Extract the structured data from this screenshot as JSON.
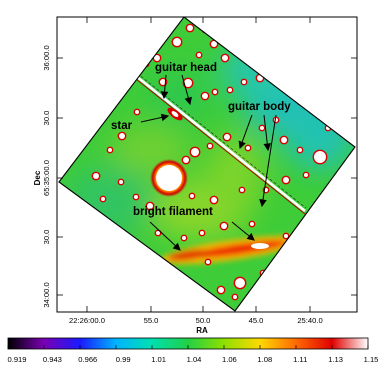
{
  "chart_data": {
    "type": "heatmap",
    "title": "",
    "xlabel": "RA",
    "ylabel_line1": "Dec",
    "ylabel_line2": "65:35:00.0",
    "x_ticks": [
      "22:26:00.0",
      "55.0",
      "50.0",
      "45.0",
      "25:40.0"
    ],
    "y_ticks": [
      "36:00.0",
      "30.0",
      "30.0",
      "34:00.0"
    ],
    "colorbar": {
      "min": 0.919,
      "max": 1.15,
      "ticks": [
        "0.919",
        "0.943",
        "0.966",
        "0.99",
        "1.01",
        "1.04",
        "1.06",
        "1.08",
        "1.11",
        "1.13",
        "1.15"
      ],
      "colormap": [
        "#000000",
        "#7a00b4",
        "#1a1aff",
        "#00b4ff",
        "#00e0b0",
        "#22d046",
        "#8ee000",
        "#ffd800",
        "#ff6a00",
        "#e00000",
        "#ffffff"
      ]
    },
    "annotations": [
      {
        "text": "guitar head"
      },
      {
        "text": "guitar body"
      },
      {
        "text": "star"
      },
      {
        "text": "bright filament"
      }
    ]
  }
}
